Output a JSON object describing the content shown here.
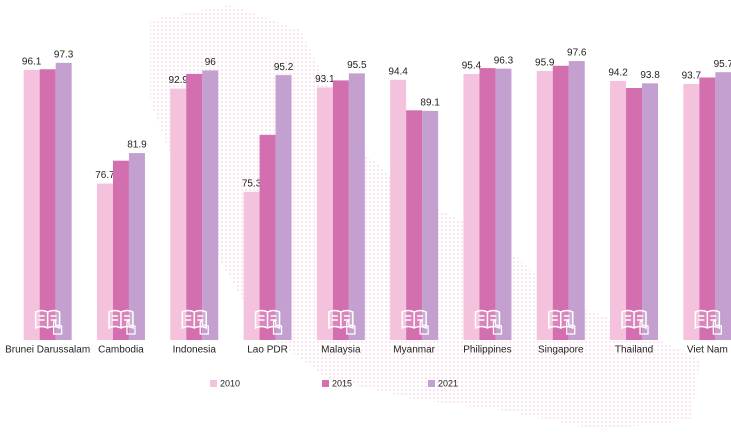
{
  "chart_data": {
    "type": "bar",
    "categories": [
      "Brunei Darussalam",
      "Cambodia",
      "Indonesia",
      "Lao PDR",
      "Malaysia",
      "Myanmar",
      "Philippines",
      "Singapore",
      "Thailand",
      "Viet Nam"
    ],
    "series": [
      {
        "name": "2010",
        "color": "#f4c2dc",
        "labels": true,
        "values": [
          96.1,
          76.7,
          92.9,
          75.3,
          93.1,
          94.4,
          95.4,
          95.9,
          94.2,
          93.7
        ]
      },
      {
        "name": "2015",
        "color": "#d36fae",
        "labels": false,
        "values": [
          96.2,
          80.6,
          95.4,
          85.0,
          94.3,
          89.2,
          96.4,
          96.8,
          93.0,
          94.8
        ]
      },
      {
        "name": "2021",
        "color": "#c3a0cf",
        "labels": true,
        "values": [
          97.3,
          81.9,
          96.0,
          95.2,
          95.5,
          89.1,
          96.3,
          97.6,
          93.8,
          95.7
        ]
      }
    ],
    "ylim": [
      50,
      100
    ]
  }
}
